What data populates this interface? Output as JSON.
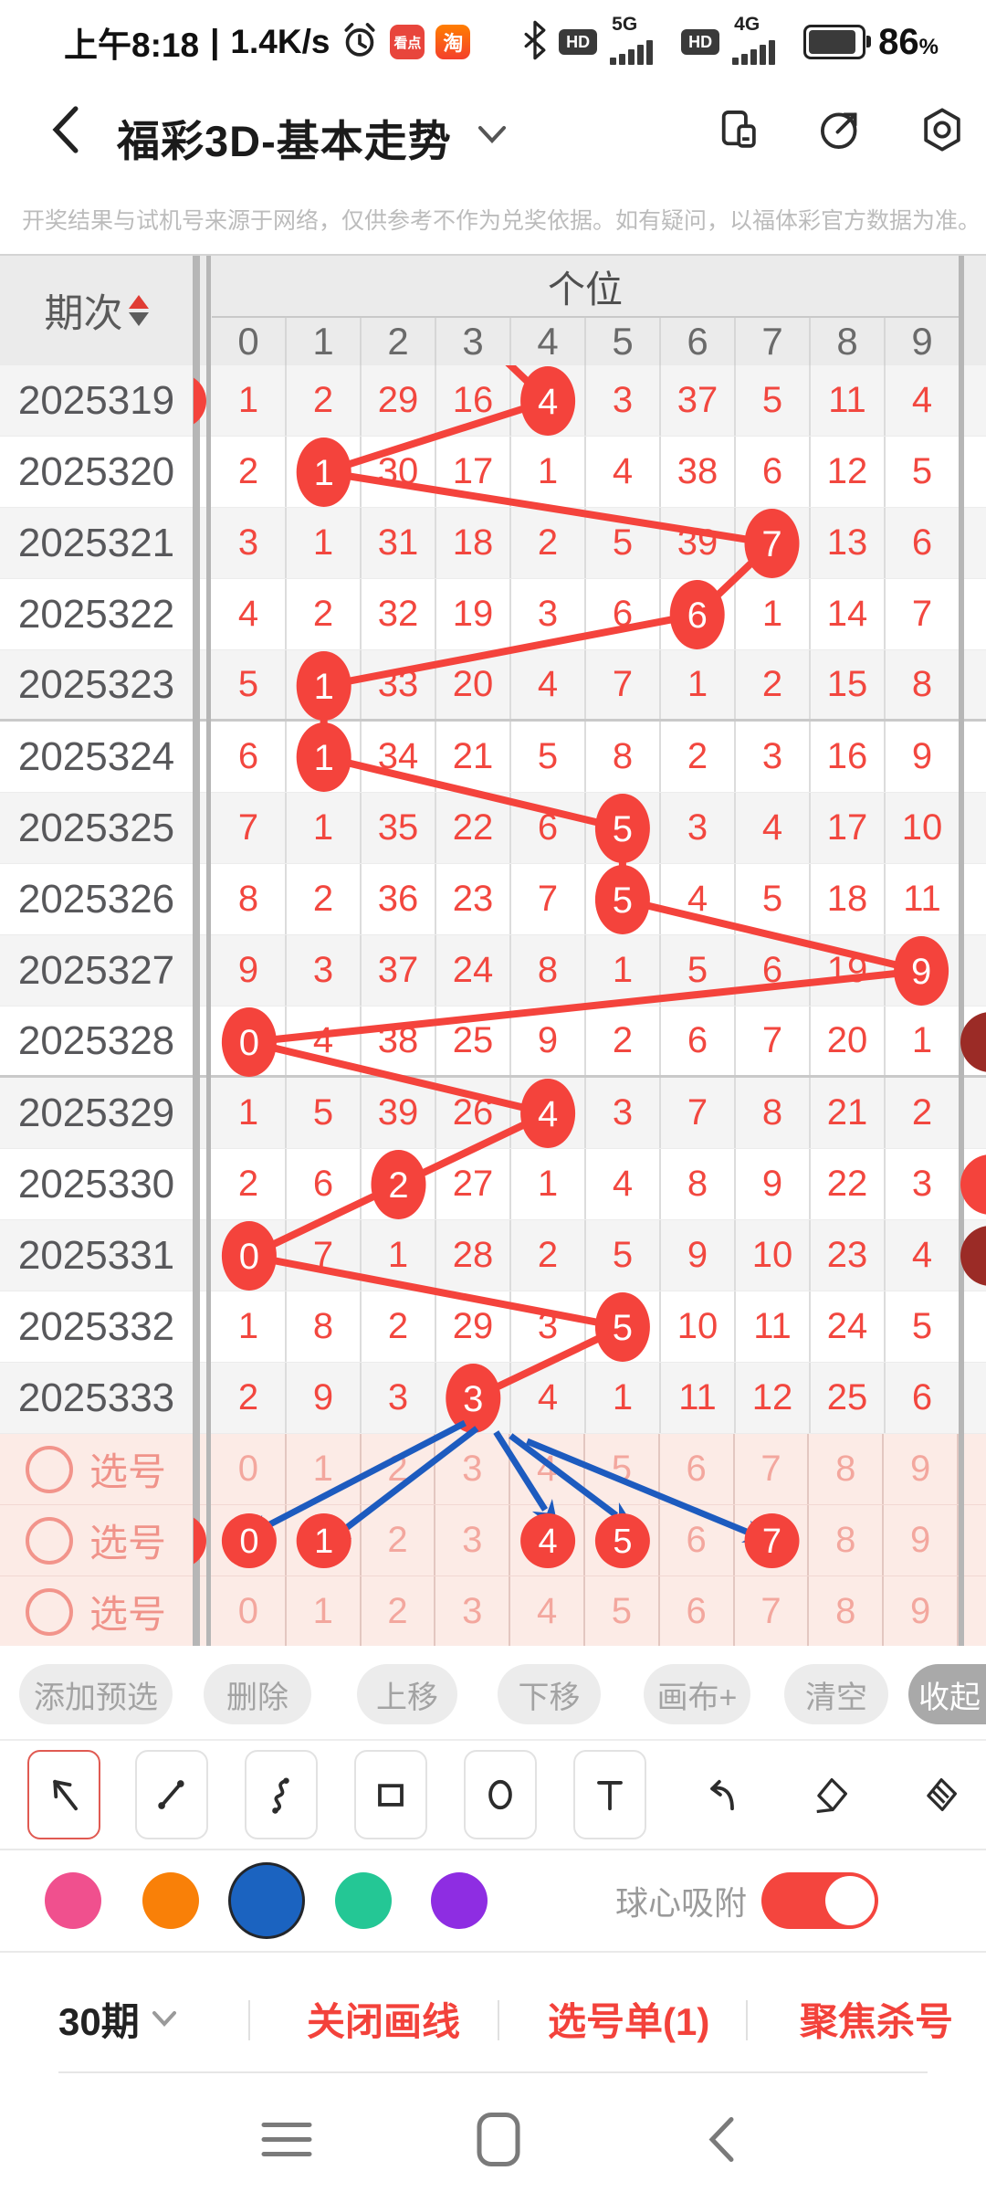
{
  "status_bar": {
    "time": "上午8:18",
    "separator": "|",
    "net_speed": "1.4K/s",
    "app_badge_1": "看点",
    "app_badge_2": "淘",
    "hd_badge": "HD",
    "net_1": "5G",
    "net_2": "4G",
    "battery_percent": "86",
    "percent_sign": "%"
  },
  "app_header": {
    "title": "福彩3D-基本走势"
  },
  "notice": {
    "text": "开奖结果与试机号来源于网络，仅供参考不作为兑奖依据。如有疑问，以福体彩官方数据为准。"
  },
  "trend_table": {
    "period_header": "期次",
    "group_header": "个位",
    "digit_headers": [
      "0",
      "1",
      "2",
      "3",
      "4",
      "5",
      "6",
      "7",
      "8",
      "9"
    ],
    "rows": [
      {
        "period": "2025319",
        "values": [
          "1",
          "2",
          "29",
          "16",
          "4",
          "3",
          "37",
          "5",
          "11",
          "4"
        ],
        "ball_col": 4,
        "edge_left": true
      },
      {
        "period": "2025320",
        "values": [
          "2",
          "1",
          "30",
          "17",
          "1",
          "4",
          "38",
          "6",
          "12",
          "5"
        ],
        "ball_col": 1
      },
      {
        "period": "2025321",
        "values": [
          "3",
          "1",
          "31",
          "18",
          "2",
          "5",
          "39",
          "7",
          "13",
          "6"
        ],
        "ball_col": 7
      },
      {
        "period": "2025322",
        "values": [
          "4",
          "2",
          "32",
          "19",
          "3",
          "6",
          "6",
          "1",
          "14",
          "7"
        ],
        "ball_col": 6
      },
      {
        "period": "2025323",
        "values": [
          "5",
          "1",
          "33",
          "20",
          "4",
          "7",
          "1",
          "2",
          "15",
          "8"
        ],
        "ball_col": 1
      },
      {
        "period": "2025324",
        "values": [
          "6",
          "1",
          "34",
          "21",
          "5",
          "8",
          "2",
          "3",
          "16",
          "9"
        ],
        "ball_col": 1
      },
      {
        "period": "2025325",
        "values": [
          "7",
          "1",
          "35",
          "22",
          "6",
          "5",
          "3",
          "4",
          "17",
          "10"
        ],
        "ball_col": 5
      },
      {
        "period": "2025326",
        "values": [
          "8",
          "2",
          "36",
          "23",
          "7",
          "5",
          "4",
          "5",
          "18",
          "11"
        ],
        "ball_col": 5
      },
      {
        "period": "2025327",
        "values": [
          "9",
          "3",
          "37",
          "24",
          "8",
          "1",
          "5",
          "6",
          "19",
          "9"
        ],
        "ball_col": 9
      },
      {
        "period": "2025328",
        "values": [
          "0",
          "4",
          "38",
          "25",
          "9",
          "2",
          "6",
          "7",
          "20",
          "1"
        ],
        "ball_col": 0,
        "edge_right": "dark"
      },
      {
        "period": "2025329",
        "values": [
          "1",
          "5",
          "39",
          "26",
          "4",
          "3",
          "7",
          "8",
          "21",
          "2"
        ],
        "ball_col": 4
      },
      {
        "period": "2025330",
        "values": [
          "2",
          "6",
          "2",
          "27",
          "1",
          "4",
          "8",
          "9",
          "22",
          "3"
        ],
        "ball_col": 2,
        "edge_right": "red"
      },
      {
        "period": "2025331",
        "values": [
          "0",
          "7",
          "1",
          "28",
          "2",
          "5",
          "9",
          "10",
          "23",
          "4"
        ],
        "ball_col": 0,
        "edge_right": "dark"
      },
      {
        "period": "2025332",
        "values": [
          "1",
          "8",
          "2",
          "29",
          "3",
          "5",
          "10",
          "11",
          "24",
          "5"
        ],
        "ball_col": 5
      },
      {
        "period": "2025333",
        "values": [
          "2",
          "9",
          "3",
          "3",
          "4",
          "1",
          "11",
          "12",
          "25",
          "6"
        ],
        "ball_col": 3
      }
    ],
    "pick_rows": [
      {
        "label": "选号",
        "values": [
          "0",
          "1",
          "2",
          "3",
          "4",
          "5",
          "6",
          "7",
          "8",
          "9"
        ],
        "selected": []
      },
      {
        "label": "选号",
        "values": [
          "0",
          "1",
          "2",
          "3",
          "4",
          "5",
          "6",
          "7",
          "8",
          "9"
        ],
        "selected": [
          0,
          1,
          4,
          5,
          7
        ],
        "edge_left": true
      },
      {
        "label": "选号",
        "values": [
          "0",
          "1",
          "2",
          "3",
          "4",
          "5",
          "6",
          "7",
          "8",
          "9"
        ],
        "selected": []
      }
    ],
    "colors": {
      "ball": "#f4433c",
      "dark_ball": "#9b2b26",
      "trend_line": "#f4433c",
      "arrow": "#1d5bbf"
    }
  },
  "annotation_arrows": {
    "from_period": "2025333",
    "from_col": 3,
    "to_pick_cols": [
      0,
      1,
      4,
      5,
      7
    ]
  },
  "action_bar": {
    "buttons": [
      {
        "label": "添加预选"
      },
      {
        "label": "删除"
      },
      {
        "label": "上移"
      },
      {
        "label": "下移"
      },
      {
        "label": "画布+"
      },
      {
        "label": "清空"
      },
      {
        "label": "收起",
        "active": true
      }
    ]
  },
  "draw_toolbar": {
    "tools": [
      {
        "name": "select-arrow-tool",
        "selected": true,
        "boxed": true
      },
      {
        "name": "line-tool",
        "boxed": true
      },
      {
        "name": "curve-tool",
        "boxed": true
      },
      {
        "name": "rect-tool",
        "boxed": true
      },
      {
        "name": "ellipse-tool",
        "boxed": true
      },
      {
        "name": "text-tool",
        "boxed": true
      },
      {
        "name": "undo",
        "boxed": false
      },
      {
        "name": "eraser",
        "boxed": false
      },
      {
        "name": "clear-eraser",
        "boxed": false
      }
    ]
  },
  "palette": {
    "colors": [
      "#f0508e",
      "#f98008",
      "#1b63c0",
      "#24c795",
      "#8e2de2"
    ],
    "selected_index": 2,
    "snap_label": "球心吸附",
    "snap_on": true,
    "toggle_color": "#f4453e"
  },
  "bottom_bar": {
    "periods": "30期",
    "items": [
      "关闭画线",
      "选号单(1)",
      "聚焦杀号"
    ]
  }
}
